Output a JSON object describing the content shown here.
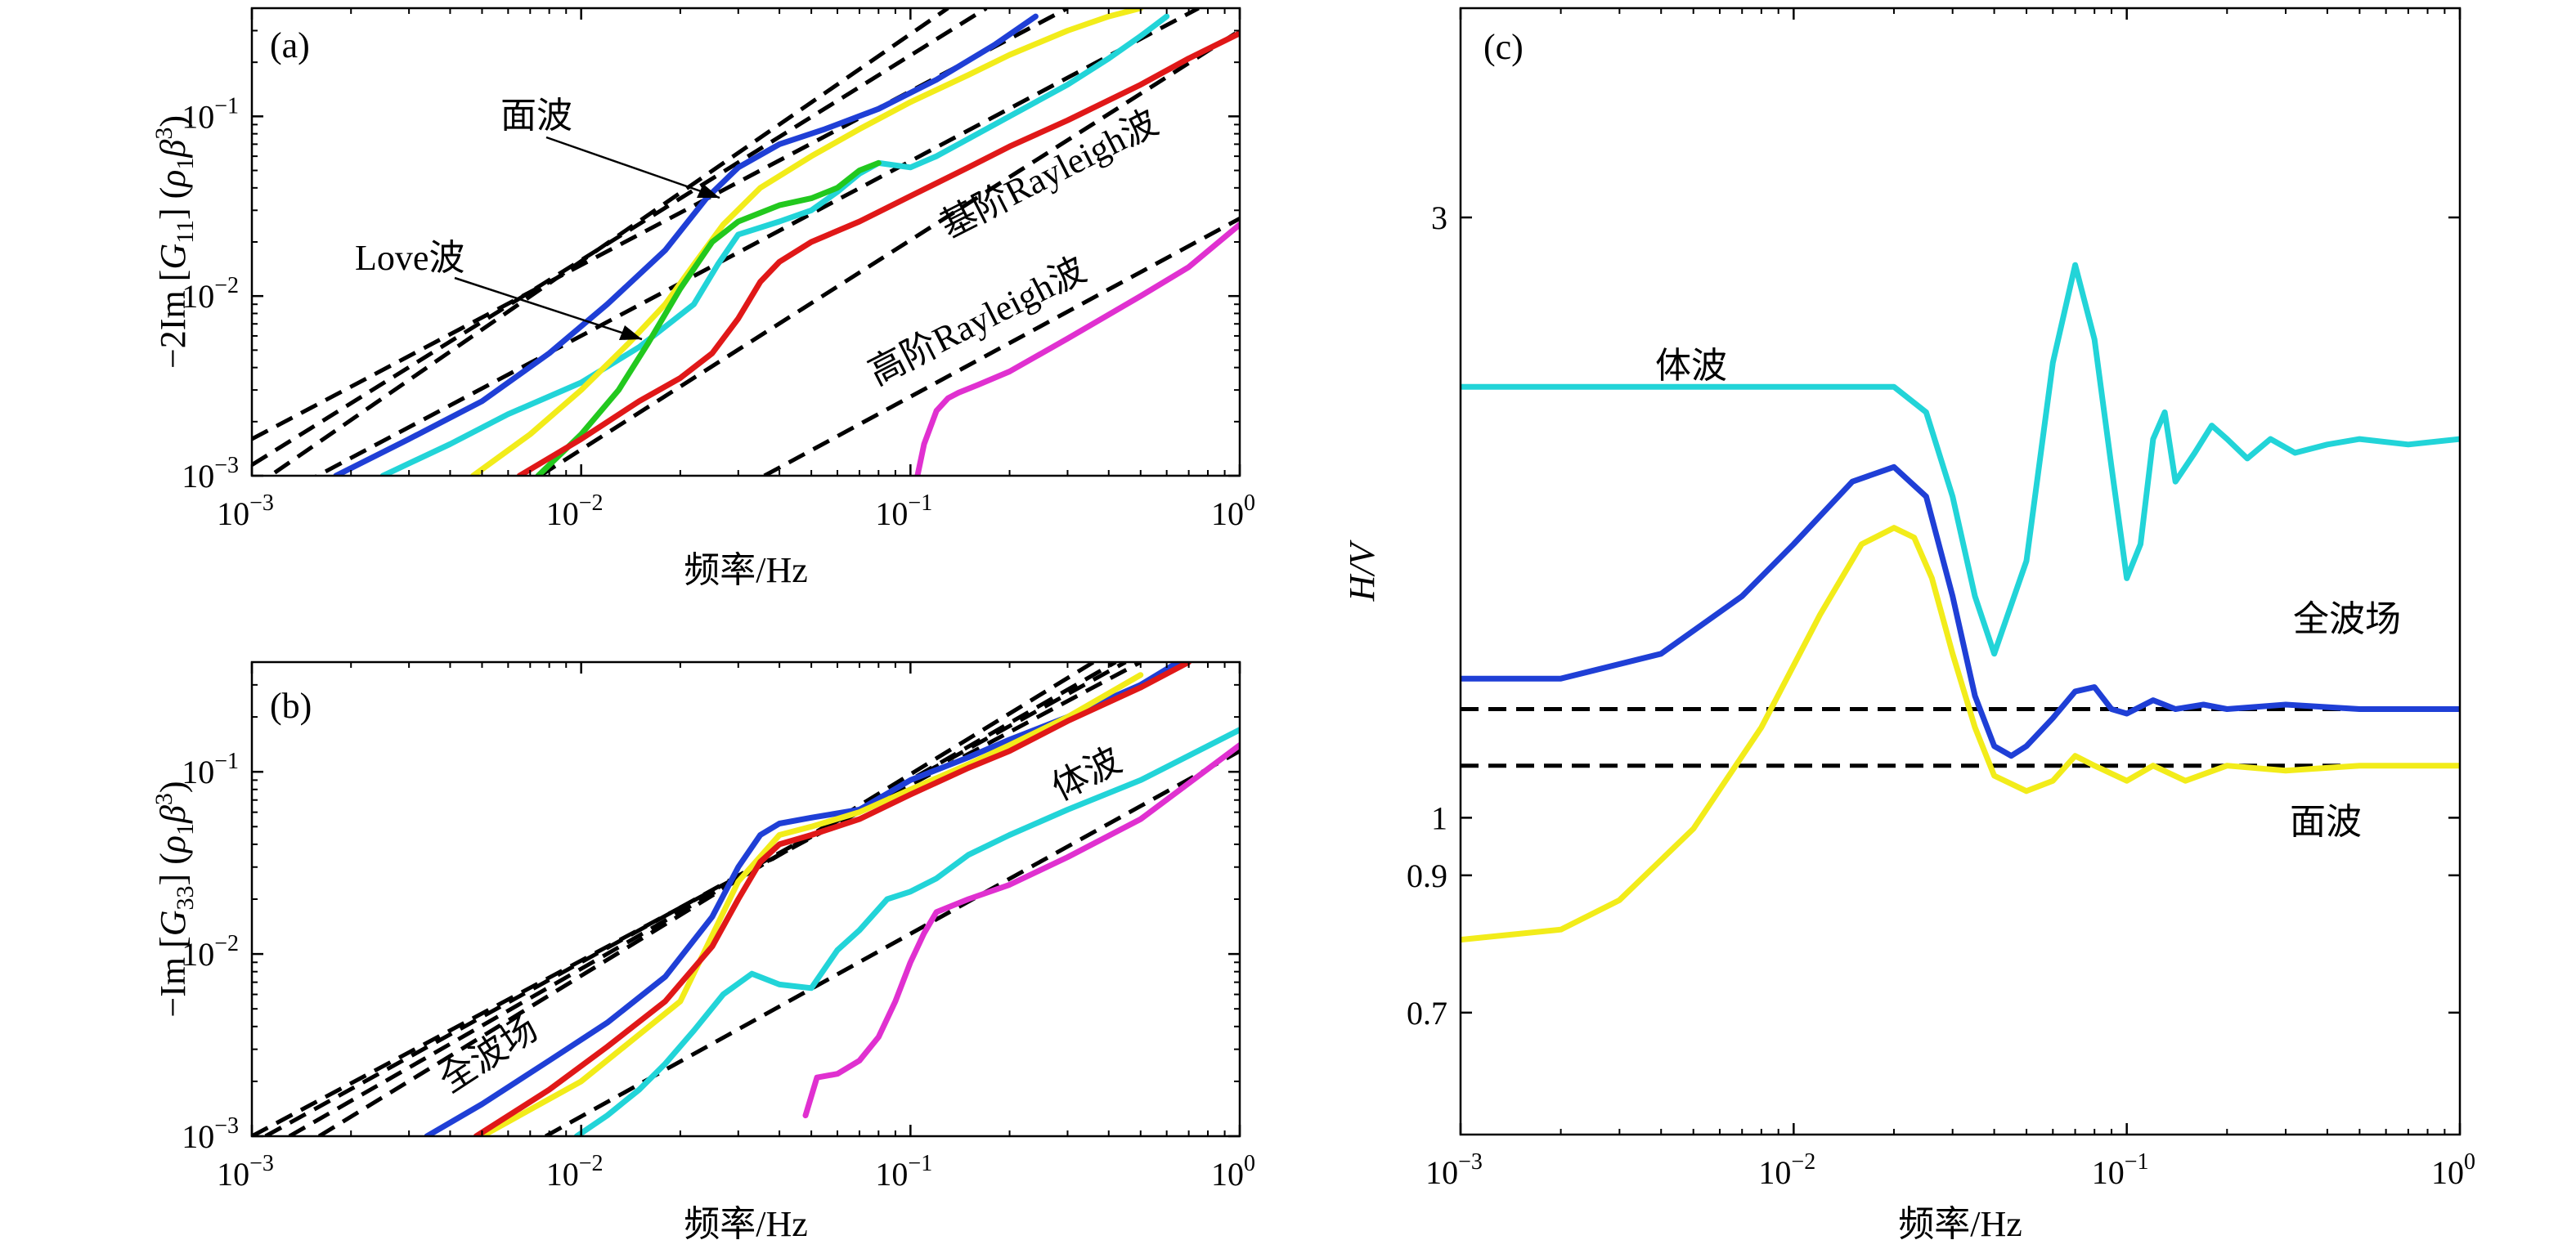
{
  "figure": {
    "panel_labels": [
      "(a)",
      "(b)",
      "(c)"
    ]
  },
  "colors": {
    "total_blue": "#1f3fd6",
    "body_cyan": "#22d4d8",
    "surface_yellow": "#f2ec1a",
    "love_green": "#22c81e",
    "rayleigh_fund_red": "#e01818",
    "rayleigh_higher_magenta": "#e030d0",
    "reference_dashed": "#000000"
  },
  "chart_data": [
    {
      "panel": "(a)",
      "type": "line",
      "xscale": "log",
      "yscale": "log",
      "xlabel": "频率/Hz",
      "ylabel": "−2Im [G11] (ρ1β³)",
      "ylabel_parts": {
        "pre": "−2Im [",
        "sym": "G",
        "sub": "11",
        "mid": "] (",
        "rho": "ρ",
        "rsub": "1",
        "beta": "β",
        "sup": "3",
        "post": ")"
      },
      "xlim": [
        0.001,
        1
      ],
      "ylim": [
        0.001,
        0.4
      ],
      "xticks": [
        {
          "b": "10",
          "e": "−3"
        },
        {
          "b": "10",
          "e": "−2"
        },
        {
          "b": "10",
          "e": "−1"
        },
        {
          "b": "10",
          "e": "0"
        }
      ],
      "yticks": [
        {
          "b": "10",
          "e": "−3"
        },
        {
          "b": "10",
          "e": "−2"
        },
        {
          "b": "10",
          "e": "−1"
        }
      ],
      "annotations": [
        "面波",
        "Love波",
        "基阶Rayleigh波",
        "高阶Rayleigh波"
      ],
      "series": [
        {
          "color_key": "total_blue",
          "x": [
            0.0018,
            0.003,
            0.005,
            0.008,
            0.012,
            0.018,
            0.024,
            0.03,
            0.04,
            0.055,
            0.08,
            0.12,
            0.18,
            0.24
          ],
          "y": [
            0.001,
            0.0016,
            0.0026,
            0.0048,
            0.009,
            0.018,
            0.035,
            0.052,
            0.07,
            0.085,
            0.11,
            0.16,
            0.25,
            0.36
          ]
        },
        {
          "color_key": "body_cyan",
          "x": [
            0.0025,
            0.004,
            0.006,
            0.01,
            0.015,
            0.022,
            0.026,
            0.03,
            0.04,
            0.05,
            0.06,
            0.07,
            0.08,
            0.1,
            0.12,
            0.15,
            0.2,
            0.3,
            0.4,
            0.5,
            0.6
          ],
          "y": [
            0.001,
            0.0015,
            0.0022,
            0.0033,
            0.0052,
            0.009,
            0.015,
            0.022,
            0.026,
            0.03,
            0.038,
            0.048,
            0.055,
            0.052,
            0.06,
            0.075,
            0.1,
            0.15,
            0.21,
            0.28,
            0.36
          ]
        },
        {
          "color_key": "surface_yellow",
          "x": [
            0.0047,
            0.007,
            0.01,
            0.014,
            0.018,
            0.022,
            0.027,
            0.035,
            0.05,
            0.07,
            0.1,
            0.15,
            0.2,
            0.3,
            0.4,
            0.5
          ],
          "y": [
            0.001,
            0.0017,
            0.003,
            0.0055,
            0.009,
            0.015,
            0.025,
            0.04,
            0.06,
            0.085,
            0.12,
            0.17,
            0.22,
            0.3,
            0.36,
            0.4
          ]
        },
        {
          "color_key": "love_green",
          "x": [
            0.0074,
            0.01,
            0.013,
            0.016,
            0.02,
            0.025,
            0.03,
            0.04,
            0.05,
            0.06,
            0.07,
            0.08
          ],
          "y": [
            0.001,
            0.0017,
            0.003,
            0.0055,
            0.011,
            0.02,
            0.026,
            0.032,
            0.035,
            0.04,
            0.05,
            0.055
          ]
        },
        {
          "color_key": "rayleigh_fund_red",
          "x": [
            0.0065,
            0.01,
            0.015,
            0.02,
            0.025,
            0.03,
            0.035,
            0.04,
            0.05,
            0.07,
            0.1,
            0.15,
            0.2,
            0.3,
            0.5,
            0.7,
            1.0
          ],
          "y": [
            0.001,
            0.0016,
            0.0026,
            0.0035,
            0.0048,
            0.0075,
            0.012,
            0.0155,
            0.02,
            0.026,
            0.036,
            0.052,
            0.068,
            0.095,
            0.15,
            0.21,
            0.29
          ]
        },
        {
          "color_key": "rayleigh_higher_magenta",
          "x": [
            0.105,
            0.11,
            0.12,
            0.13,
            0.14,
            0.16,
            0.2,
            0.3,
            0.5,
            0.7,
            1.0
          ],
          "y": [
            0.001,
            0.0015,
            0.0023,
            0.0027,
            0.0029,
            0.0032,
            0.0038,
            0.0058,
            0.01,
            0.0145,
            0.025
          ]
        }
      ],
      "references": [
        {
          "x": [
            0.001,
            0.3
          ],
          "y": [
            0.0016,
            0.4
          ]
        },
        {
          "x": [
            0.001,
            0.17
          ],
          "y": [
            0.00115,
            0.4
          ]
        },
        {
          "x": [
            0.001,
            0.13
          ],
          "y": [
            0.00085,
            0.4
          ]
        },
        {
          "x": [
            0.001,
            0.75
          ],
          "y": [
            0.00064,
            0.4
          ]
        },
        {
          "x": [
            0.0075,
            1.0
          ],
          "y": [
            0.001,
            0.3
          ]
        },
        {
          "x": [
            0.036,
            1.0
          ],
          "y": [
            0.001,
            0.027
          ]
        }
      ]
    },
    {
      "panel": "(b)",
      "type": "line",
      "xscale": "log",
      "yscale": "log",
      "xlabel": "频率/Hz",
      "ylabel": "−Im [G33] (ρ1β³)",
      "ylabel_parts": {
        "pre": "−Im [",
        "sym": "G",
        "sub": "33",
        "mid": "] (",
        "rho": "ρ",
        "rsub": "1",
        "beta": "β",
        "sup": "3",
        "post": ")"
      },
      "xlim": [
        0.001,
        1
      ],
      "ylim": [
        0.001,
        0.4
      ],
      "xticks": [
        {
          "b": "10",
          "e": "−3"
        },
        {
          "b": "10",
          "e": "−2"
        },
        {
          "b": "10",
          "e": "−1"
        },
        {
          "b": "10",
          "e": "0"
        }
      ],
      "yticks": [
        {
          "b": "10",
          "e": "−3"
        },
        {
          "b": "10",
          "e": "−2"
        },
        {
          "b": "10",
          "e": "−1"
        }
      ],
      "annotations": [
        "体波",
        "全波场"
      ],
      "series": [
        {
          "color_key": "total_blue",
          "x": [
            0.0034,
            0.005,
            0.008,
            0.012,
            0.018,
            0.025,
            0.03,
            0.035,
            0.04,
            0.05,
            0.07,
            0.1,
            0.15,
            0.2,
            0.3,
            0.5,
            0.65
          ],
          "y": [
            0.001,
            0.0015,
            0.0026,
            0.0042,
            0.0075,
            0.016,
            0.03,
            0.045,
            0.052,
            0.056,
            0.062,
            0.09,
            0.12,
            0.15,
            0.2,
            0.3,
            0.4
          ]
        },
        {
          "color_key": "body_cyan",
          "x": [
            0.0097,
            0.012,
            0.015,
            0.018,
            0.022,
            0.027,
            0.033,
            0.04,
            0.05,
            0.06,
            0.07,
            0.085,
            0.1,
            0.12,
            0.15,
            0.2,
            0.3,
            0.5,
            1.0
          ],
          "y": [
            0.001,
            0.0013,
            0.0018,
            0.0025,
            0.0038,
            0.006,
            0.0078,
            0.0068,
            0.0065,
            0.0105,
            0.0135,
            0.02,
            0.022,
            0.026,
            0.035,
            0.045,
            0.062,
            0.09,
            0.17
          ]
        },
        {
          "color_key": "surface_yellow",
          "x": [
            0.005,
            0.01,
            0.02,
            0.03,
            0.04,
            0.05,
            0.07,
            0.1,
            0.15,
            0.2,
            0.3,
            0.5
          ],
          "y": [
            0.001,
            0.002,
            0.0055,
            0.025,
            0.045,
            0.05,
            0.06,
            0.08,
            0.11,
            0.14,
            0.2,
            0.34
          ]
        },
        {
          "color_key": "rayleigh_fund_red",
          "x": [
            0.0048,
            0.008,
            0.012,
            0.018,
            0.025,
            0.03,
            0.035,
            0.04,
            0.05,
            0.07,
            0.1,
            0.15,
            0.2,
            0.3,
            0.5,
            0.7
          ],
          "y": [
            0.001,
            0.0018,
            0.0031,
            0.0055,
            0.011,
            0.02,
            0.032,
            0.04,
            0.045,
            0.055,
            0.075,
            0.105,
            0.13,
            0.19,
            0.29,
            0.4
          ]
        },
        {
          "color_key": "rayleigh_higher_magenta",
          "x": [
            0.048,
            0.052,
            0.06,
            0.07,
            0.08,
            0.09,
            0.1,
            0.11,
            0.12,
            0.15,
            0.2,
            0.3,
            0.5,
            1.0
          ],
          "y": [
            0.0013,
            0.0021,
            0.0022,
            0.0026,
            0.0035,
            0.0055,
            0.009,
            0.013,
            0.017,
            0.02,
            0.024,
            0.034,
            0.055,
            0.14
          ]
        }
      ],
      "references": [
        {
          "x": [
            0.001,
            0.5
          ],
          "y": [
            0.001,
            0.4
          ]
        },
        {
          "x": [
            0.0011,
            0.45
          ],
          "y": [
            0.001,
            0.4
          ]
        },
        {
          "x": [
            0.0013,
            0.42
          ],
          "y": [
            0.001,
            0.4
          ]
        },
        {
          "x": [
            0.0016,
            0.36
          ],
          "y": [
            0.001,
            0.4
          ]
        },
        {
          "x": [
            0.0078,
            1.0
          ],
          "y": [
            0.001,
            0.13
          ]
        }
      ]
    },
    {
      "panel": "(c)",
      "type": "line",
      "xscale": "log",
      "yscale": "log",
      "xlabel": "频率/Hz",
      "ylabel": "H/V",
      "xlim": [
        0.001,
        1
      ],
      "ylim": [
        0.56,
        4.4
      ],
      "xticks": [
        {
          "b": "10",
          "e": "−3"
        },
        {
          "b": "10",
          "e": "−2"
        },
        {
          "b": "10",
          "e": "−1"
        },
        {
          "b": "10",
          "e": "0"
        }
      ],
      "yticks": [
        "0.7",
        "0.9",
        "1",
        "3"
      ],
      "ytick_values": [
        0.7,
        0.9,
        1.0,
        3.0
      ],
      "annotations": [
        "体波",
        "全波场",
        "面波"
      ],
      "series": [
        {
          "color_key": "body_cyan",
          "x": [
            0.001,
            0.005,
            0.01,
            0.015,
            0.02,
            0.025,
            0.03,
            0.035,
            0.04,
            0.05,
            0.06,
            0.07,
            0.08,
            0.09,
            0.1,
            0.11,
            0.12,
            0.13,
            0.14,
            0.16,
            0.18,
            0.2,
            0.23,
            0.27,
            0.32,
            0.4,
            0.5,
            0.7,
            1.0
          ],
          "y": [
            2.2,
            2.2,
            2.2,
            2.2,
            2.2,
            2.1,
            1.8,
            1.5,
            1.35,
            1.6,
            2.3,
            2.75,
            2.4,
            1.9,
            1.55,
            1.65,
            2.0,
            2.1,
            1.85,
            1.95,
            2.05,
            2.0,
            1.93,
            2.0,
            1.95,
            1.98,
            2.0,
            1.98,
            2.0
          ]
        },
        {
          "color_key": "total_blue",
          "x": [
            0.001,
            0.002,
            0.004,
            0.007,
            0.01,
            0.015,
            0.02,
            0.025,
            0.03,
            0.035,
            0.04,
            0.045,
            0.05,
            0.06,
            0.07,
            0.08,
            0.09,
            0.1,
            0.12,
            0.14,
            0.17,
            0.2,
            0.3,
            0.5,
            1.0
          ],
          "y": [
            1.29,
            1.29,
            1.35,
            1.5,
            1.65,
            1.85,
            1.9,
            1.8,
            1.5,
            1.25,
            1.14,
            1.12,
            1.14,
            1.2,
            1.26,
            1.27,
            1.22,
            1.21,
            1.24,
            1.22,
            1.23,
            1.22,
            1.23,
            1.22,
            1.22
          ]
        },
        {
          "color_key": "surface_yellow",
          "x": [
            0.001,
            0.002,
            0.003,
            0.005,
            0.008,
            0.012,
            0.016,
            0.02,
            0.023,
            0.026,
            0.03,
            0.035,
            0.04,
            0.05,
            0.06,
            0.07,
            0.08,
            0.1,
            0.12,
            0.15,
            0.2,
            0.3,
            0.5,
            1.0
          ],
          "y": [
            0.8,
            0.815,
            0.86,
            0.98,
            1.18,
            1.45,
            1.65,
            1.7,
            1.67,
            1.55,
            1.35,
            1.18,
            1.08,
            1.05,
            1.07,
            1.12,
            1.1,
            1.07,
            1.1,
            1.07,
            1.1,
            1.09,
            1.1,
            1.1
          ]
        }
      ],
      "references": [
        {
          "x": [
            0.001,
            1.0
          ],
          "y": [
            1.22,
            1.22
          ]
        },
        {
          "x": [
            0.001,
            1.0
          ],
          "y": [
            1.1,
            1.1
          ]
        }
      ]
    }
  ]
}
